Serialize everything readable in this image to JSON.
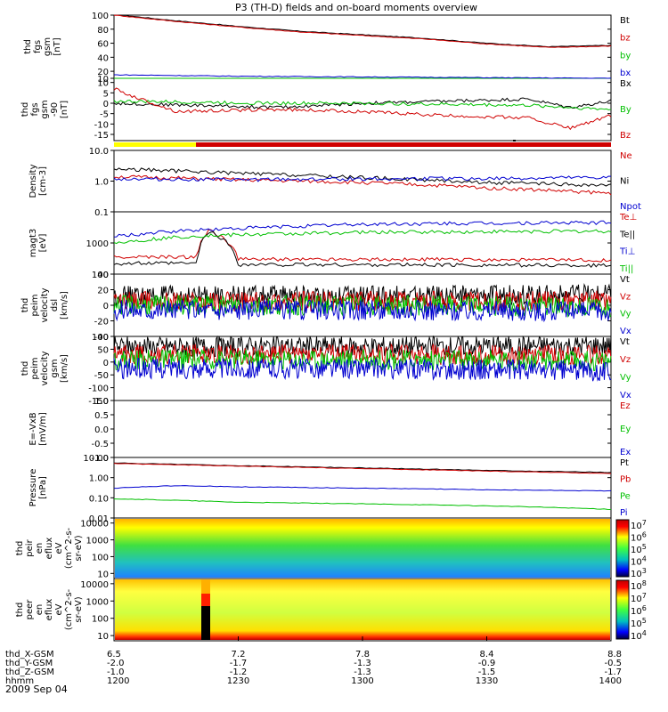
{
  "title": "P3 (TH-D) fields and on-board moments overview",
  "date": "2009 Sep 04",
  "colors": {
    "black": "#000000",
    "red": "#d00000",
    "green": "#00c000",
    "blue": "#0000d0",
    "yellow": "#ffff00"
  },
  "chart_data": [
    {
      "type": "line",
      "ylabel": [
        "thd",
        "fgs",
        "gsm",
        "[nT]"
      ],
      "ylim": [
        10,
        100
      ],
      "ticks": [
        "100",
        "80",
        "60",
        "40",
        "20",
        "10"
      ],
      "tick_values": [
        100,
        80,
        60,
        40,
        20,
        10
      ],
      "series": [
        {
          "name": "Bt",
          "color": "#000000",
          "x": [
            1200,
            1215,
            1230,
            1245,
            1300,
            1315,
            1330,
            1345,
            1400
          ],
          "y": [
            101,
            92,
            84,
            77,
            72,
            67,
            60,
            55,
            57
          ]
        },
        {
          "name": "bz",
          "color": "#d00000",
          "x": [
            1200,
            1215,
            1230,
            1245,
            1300,
            1315,
            1330,
            1345,
            1400
          ],
          "y": [
            100,
            91,
            83,
            76,
            71,
            66,
            59,
            54,
            56
          ]
        },
        {
          "name": "by",
          "color": "#00c000",
          "x": [
            1200,
            1300,
            1400
          ],
          "y": [
            9,
            8,
            7
          ]
        },
        {
          "name": "bx",
          "color": "#0000d0",
          "x": [
            1200,
            1215,
            1230,
            1300,
            1330,
            1400
          ],
          "y": [
            15,
            14,
            13,
            12,
            11,
            10
          ]
        }
      ]
    },
    {
      "type": "line",
      "ylabel": [
        "thd",
        "fgs",
        "gsm",
        "-90",
        "[nT]"
      ],
      "ylim": [
        -18,
        12
      ],
      "ticks": [
        "10",
        "5",
        "0",
        "-5",
        "-10",
        "-15"
      ],
      "tick_values": [
        10,
        5,
        0,
        -5,
        -10,
        -15
      ],
      "series": [
        {
          "name": "Bx",
          "color": "#000000",
          "x": [
            1200,
            1220,
            1240,
            1300,
            1320,
            1340,
            1350,
            1400
          ],
          "y": [
            0,
            -1,
            -2,
            0,
            1,
            2,
            -2,
            1
          ]
        },
        {
          "name": "By",
          "color": "#00c000",
          "x": [
            1200,
            1240,
            1300,
            1340,
            1400
          ],
          "y": [
            1,
            0,
            0,
            -1,
            -3
          ]
        },
        {
          "name": "Bz",
          "color": "#d00000",
          "x": [
            1200,
            1205,
            1215,
            1240,
            1300,
            1320,
            1340,
            1350,
            1400
          ],
          "y": [
            7,
            3,
            -4,
            -3,
            -4,
            -6,
            -7,
            -12,
            -6
          ]
        }
      ]
    },
    {
      "type": "line",
      "ylabel": [
        "Density",
        "[cm-3]"
      ],
      "log": true,
      "ylim": [
        0.1,
        10
      ],
      "ticks": [
        "10.0",
        "1.0",
        "0.1"
      ],
      "tick_values": [
        10,
        1,
        0.1
      ],
      "series": [
        {
          "name": "Ne",
          "color": "#d00000",
          "x": [
            1200,
            1230,
            1300,
            1330,
            1400
          ],
          "y": [
            1.4,
            1.1,
            0.9,
            0.6,
            0.4
          ]
        },
        {
          "name": "Ni",
          "color": "#000000",
          "x": [
            1200,
            1230,
            1300,
            1330,
            1400
          ],
          "y": [
            2.5,
            1.8,
            1.3,
            0.9,
            0.7
          ]
        },
        {
          "name": "Npot",
          "color": "#0000d0",
          "x": [
            1200,
            1230,
            1300,
            1330,
            1400
          ],
          "y": [
            1.2,
            1.1,
            1.2,
            1.2,
            1.3
          ]
        }
      ]
    },
    {
      "type": "line",
      "ylabel": [
        "magt3",
        "[eV]"
      ],
      "log": true,
      "ylim": [
        100,
        10000
      ],
      "ticks": [
        "1000",
        "100"
      ],
      "tick_values": [
        1000,
        100
      ],
      "series": [
        {
          "name": "Te⊥",
          "color": "#d00000",
          "x": [
            1200,
            1220,
            1223,
            1230,
            1300,
            1400
          ],
          "y": [
            350,
            350,
            2500,
            300,
            300,
            280
          ]
        },
        {
          "name": "Te||",
          "color": "#000000",
          "x": [
            1200,
            1220,
            1223,
            1230,
            1300,
            1400
          ],
          "y": [
            220,
            220,
            2300,
            200,
            200,
            190
          ]
        },
        {
          "name": "Ti⊥",
          "color": "#0000d0",
          "x": [
            1200,
            1220,
            1300,
            1400
          ],
          "y": [
            1600,
            2600,
            4000,
            4500
          ]
        },
        {
          "name": "Ti||",
          "color": "#00c000",
          "x": [
            1200,
            1220,
            1300,
            1400
          ],
          "y": [
            1000,
            1700,
            2200,
            2400
          ]
        }
      ]
    },
    {
      "type": "line",
      "ylabel": [
        "thd",
        "peim",
        "velocity",
        "dsl",
        "[km/s]"
      ],
      "ylim": [
        -40,
        40
      ],
      "ticks": [
        "40",
        "20",
        "0",
        "-20",
        "-40"
      ],
      "tick_values": [
        40,
        20,
        0,
        -20,
        -40
      ],
      "series": [
        {
          "name": "Vt",
          "color": "#000000",
          "x": [
            1200,
            1300,
            1400
          ],
          "y": [
            12,
            12,
            14
          ]
        },
        {
          "name": "Vz",
          "color": "#d00000",
          "x": [
            1200,
            1300,
            1400
          ],
          "y": [
            5,
            5,
            6
          ]
        },
        {
          "name": "Vy",
          "color": "#00c000",
          "x": [
            1200,
            1300,
            1400
          ],
          "y": [
            0,
            0,
            -2
          ]
        },
        {
          "name": "Vx",
          "color": "#0000d0",
          "x": [
            1200,
            1300,
            1400
          ],
          "y": [
            -6,
            -6,
            -8
          ]
        }
      ]
    },
    {
      "type": "line",
      "ylabel": [
        "thd",
        "peim",
        "velocity",
        "gsm",
        "[km/s]"
      ],
      "ylim": [
        -150,
        100
      ],
      "ticks": [
        "100",
        "50",
        "0",
        "-50",
        "-100",
        "-150"
      ],
      "tick_values": [
        100,
        50,
        0,
        -50,
        -100,
        -150
      ],
      "series": [
        {
          "name": "Vt",
          "color": "#000000",
          "x": [
            1200,
            1300,
            1400
          ],
          "y": [
            60,
            60,
            65
          ]
        },
        {
          "name": "Vz",
          "color": "#d00000",
          "x": [
            1200,
            1300,
            1400
          ],
          "y": [
            30,
            30,
            25
          ]
        },
        {
          "name": "Vy",
          "color": "#00c000",
          "x": [
            1200,
            1300,
            1400
          ],
          "y": [
            10,
            10,
            5
          ]
        },
        {
          "name": "Vx",
          "color": "#0000d0",
          "x": [
            1200,
            1300,
            1400
          ],
          "y": [
            -25,
            -25,
            -35
          ]
        }
      ]
    },
    {
      "type": "line",
      "ylabel": [
        "E=-VxB",
        "[mV/m]"
      ],
      "ylim": [
        -1,
        1
      ],
      "ticks": [
        "1.0",
        "0.5",
        "0.0",
        "-0.5",
        "-1.0"
      ],
      "tick_values": [
        1,
        0.5,
        0,
        -0.5,
        -1
      ],
      "series": [
        {
          "name": "Ez",
          "color": "#d00000",
          "x": [],
          "y": []
        },
        {
          "name": "Ey",
          "color": "#00c000",
          "x": [],
          "y": []
        },
        {
          "name": "Ex",
          "color": "#0000d0",
          "x": [],
          "y": []
        }
      ]
    },
    {
      "type": "line",
      "ylabel": [
        "Pressure",
        "[nPa]"
      ],
      "log": true,
      "ylim": [
        0.01,
        10
      ],
      "ticks": [
        "10.00",
        "1.00",
        "0.10",
        "0.01"
      ],
      "tick_values": [
        10,
        1,
        0.1,
        0.01
      ],
      "series": [
        {
          "name": "Pt",
          "color": "#000000",
          "x": [
            1200,
            1230,
            1300,
            1330,
            1400
          ],
          "y": [
            5.3,
            3.9,
            3.0,
            2.3,
            1.8
          ]
        },
        {
          "name": "Pb",
          "color": "#d00000",
          "x": [
            1200,
            1230,
            1300,
            1330,
            1400
          ],
          "y": [
            5.0,
            3.7,
            2.8,
            2.1,
            1.6
          ]
        },
        {
          "name": "Pe",
          "color": "#00c000",
          "x": [
            1200,
            1230,
            1300,
            1330,
            1400
          ],
          "y": [
            0.09,
            0.06,
            0.05,
            0.04,
            0.027
          ]
        },
        {
          "name": "Pi",
          "color": "#0000d0",
          "x": [
            1200,
            1215,
            1230,
            1300,
            1330,
            1400
          ],
          "y": [
            0.3,
            0.4,
            0.35,
            0.3,
            0.25,
            0.22
          ]
        }
      ]
    },
    {
      "type": "heatmap",
      "ylabel": [
        "thd",
        "peir",
        "en",
        "eflux",
        "eV",
        "(cm^2-s-",
        "sr-eV)"
      ],
      "ticks": [
        "10000",
        "1000",
        "100",
        "10"
      ],
      "tick_values": [
        10000,
        1000,
        100,
        10
      ],
      "colorbar": [
        "10^7",
        "10^6",
        "10^5",
        "10^4",
        "10^3"
      ],
      "colorbar_values": [
        7,
        6,
        5,
        4,
        3
      ]
    },
    {
      "type": "heatmap",
      "ylabel": [
        "thd",
        "peer",
        "en",
        "eflux",
        "eV",
        "(cm^2-s-",
        "sr-eV)"
      ],
      "ticks": [
        "10000",
        "1000",
        "100",
        "10"
      ],
      "tick_values": [
        10000,
        1000,
        100,
        10
      ],
      "colorbar": [
        "10^8",
        "10^7",
        "10^6",
        "10^5",
        "10^4"
      ],
      "colorbar_values": [
        8,
        7,
        6,
        5,
        4
      ]
    }
  ],
  "xaxis": {
    "columns": [
      {
        "label": "thd_X-GSM",
        "values": [
          "6.5",
          "7.2",
          "7.8",
          "8.4",
          "8.8"
        ]
      },
      {
        "label": "thd_Y-GSM",
        "values": [
          "-2.0",
          "-1.7",
          "-1.3",
          "-0.9",
          "-0.5"
        ]
      },
      {
        "label": "thd_Z-GSM",
        "values": [
          "-1.0",
          "-1.2",
          "-1.3",
          "-1.5",
          "-1.7"
        ]
      },
      {
        "label": "hhmm",
        "values": [
          "1200",
          "1230",
          "1300",
          "1330",
          "1400"
        ]
      }
    ]
  }
}
